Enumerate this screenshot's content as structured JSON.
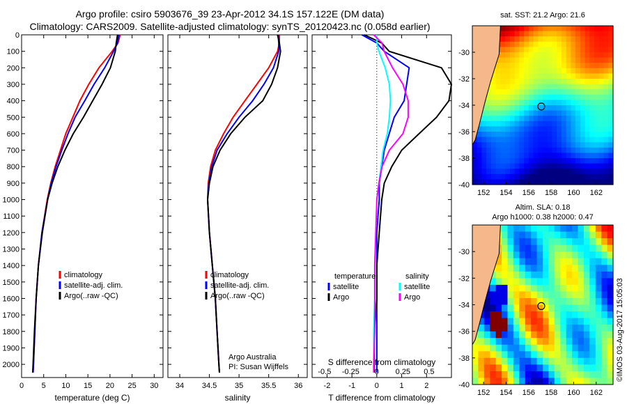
{
  "header": {
    "title_line1": "Argo profile: csiro 5903676_39 23-Apr-2012 34.1S 157.122E (DM data)",
    "title_line2": "Climatology: CARS2009. Satellite-adjusted climatology: synTS_20120423.nc (0.058d earlier)"
  },
  "credit": "©IMOS 03-Aug-2017 15:05:03",
  "colors": {
    "climatology": "#ff0000",
    "satellite": "#0000ff",
    "argo": "#000000",
    "s_satellite": "#00ffff",
    "s_argo": "#ff00ff",
    "land": "#f5b88a"
  },
  "chart_data": [
    {
      "type": "line",
      "xlabel": "temperature (deg C)",
      "ylabel": "",
      "xlim": [
        0,
        32
      ],
      "ylim": [
        2080,
        0
      ],
      "xticks": [
        0,
        5,
        10,
        15,
        20,
        25,
        30
      ],
      "yticks": [
        0,
        100,
        200,
        300,
        400,
        500,
        600,
        700,
        800,
        900,
        1000,
        1100,
        1200,
        1300,
        1400,
        1500,
        1600,
        1700,
        1800,
        1900,
        2000
      ],
      "legend": [
        "climatology",
        "satellite-adj. clim.",
        "Argo(..raw -QC)"
      ],
      "legend_placement": "lower-center",
      "y": [
        0,
        50,
        100,
        200,
        300,
        400,
        500,
        600,
        700,
        800,
        900,
        1000,
        1200,
        1400,
        1600,
        1800,
        2000,
        2050
      ],
      "series": [
        {
          "name": "climatology",
          "values": [
            22.3,
            21.8,
            20.5,
            17.5,
            15.2,
            13.2,
            11.6,
            10.0,
            8.8,
            7.6,
            6.6,
            5.8,
            4.6,
            3.8,
            3.3,
            3.0,
            2.7,
            2.6
          ]
        },
        {
          "name": "satellite-adj. clim.",
          "values": [
            22.0,
            21.7,
            20.8,
            18.8,
            16.4,
            14.3,
            12.1,
            10.5,
            9.1,
            7.8,
            6.7,
            5.9,
            4.6,
            3.8,
            3.3,
            3.0,
            2.7,
            2.6
          ]
        },
        {
          "name": "Argo(..raw -QC)",
          "values": [
            21.7,
            21.4,
            21.2,
            20.1,
            18.2,
            16.1,
            14.0,
            11.7,
            9.8,
            8.2,
            6.9,
            5.9,
            4.7,
            3.8,
            3.3,
            2.9,
            2.6,
            2.5
          ]
        }
      ]
    },
    {
      "type": "line",
      "xlabel": "salinity",
      "xlim": [
        33.8,
        36.15
      ],
      "ylim": [
        2080,
        0
      ],
      "xticks": [
        34,
        34.5,
        35,
        35.5,
        36
      ],
      "legend": [
        "climatology",
        "satellite-adj. clim.",
        "Argo(..raw -QC)"
      ],
      "legend_placement": "lower-center",
      "annotation": [
        "Argo Australia",
        "PI: Susan Wijffels"
      ],
      "y": [
        0,
        50,
        100,
        200,
        300,
        400,
        500,
        600,
        700,
        800,
        900,
        1000,
        1200,
        1400,
        1600,
        1800,
        2000,
        2050
      ],
      "series": [
        {
          "name": "climatology",
          "values": [
            35.68,
            35.68,
            35.65,
            35.5,
            35.3,
            35.1,
            34.9,
            34.74,
            34.6,
            34.52,
            34.48,
            34.47,
            34.5,
            34.55,
            34.6,
            34.63,
            34.66,
            34.67
          ]
        },
        {
          "name": "satellite-adj. clim.",
          "values": [
            35.66,
            35.67,
            35.67,
            35.58,
            35.42,
            35.23,
            35.0,
            34.8,
            34.63,
            34.54,
            34.49,
            34.47,
            34.5,
            34.55,
            34.6,
            34.63,
            34.66,
            34.67
          ]
        },
        {
          "name": "Argo(..raw -QC)",
          "values": [
            35.65,
            35.68,
            35.7,
            35.65,
            35.55,
            35.4,
            35.1,
            34.86,
            34.68,
            34.56,
            34.5,
            34.47,
            34.5,
            34.55,
            34.6,
            34.63,
            34.66,
            34.67
          ]
        }
      ]
    },
    {
      "type": "line",
      "xlabel": "T difference from climatology",
      "xlabel_top": "S difference from climatology",
      "xlim": [
        -2.6,
        3.0
      ],
      "ylim": [
        2080,
        0
      ],
      "xticks": [
        -2,
        -1,
        0,
        1,
        2
      ],
      "xticks_top": [
        "-0.5",
        "-0.25",
        "0",
        "0.25",
        "0.5"
      ],
      "legend_left": [
        "temperature",
        "satellite",
        "Argo"
      ],
      "legend_right": [
        "salinity",
        "satellite",
        "Argo"
      ],
      "legend_placement": "lower-center",
      "y": [
        0,
        50,
        100,
        200,
        300,
        400,
        500,
        600,
        700,
        800,
        900,
        1000,
        1200,
        1400,
        1600,
        1800,
        2000,
        2050
      ],
      "series": [
        {
          "name": "T satellite",
          "values": [
            -0.6,
            0,
            0.3,
            1.3,
            1.2,
            1.1,
            0.7,
            0.5,
            0.3,
            0.2,
            0.1,
            0.1,
            0,
            0,
            0,
            0,
            0,
            0
          ]
        },
        {
          "name": "T Argo",
          "values": [
            -0.5,
            0.2,
            0.5,
            2.6,
            3.0,
            2.9,
            2.4,
            1.7,
            1.0,
            0.6,
            0.3,
            0.2,
            0.1,
            0,
            0,
            -0.1,
            -0.1,
            -0.1
          ]
        },
        {
          "name": "S satellite",
          "values": [
            0,
            0,
            0.02,
            0.08,
            0.12,
            0.13,
            0.12,
            0.1,
            0.06,
            0.04,
            0.02,
            0,
            -0.01,
            -0.02,
            -0.02,
            -0.03,
            -0.03,
            -0.03
          ]
        },
        {
          "name": "S Argo",
          "values": [
            -0.03,
            0.05,
            0.07,
            0.15,
            0.25,
            0.3,
            0.3,
            0.25,
            0.12,
            0.05,
            0.02,
            0,
            -0.01,
            -0.02,
            -0.02,
            -0.02,
            -0.03,
            -0.03
          ]
        }
      ]
    }
  ],
  "maps": [
    {
      "title": "sat. SST: 21.2 Argo: 21.6",
      "xticks": [
        "152",
        "154",
        "156",
        "158",
        "160",
        "162"
      ],
      "yticks": [
        "-30",
        "-32",
        "-34",
        "-36",
        "-38",
        "-40"
      ],
      "xlim": [
        151,
        163.5
      ],
      "ylim": [
        -40,
        -28
      ]
    },
    {
      "title_line1": "Altim. SLA: 0.18",
      "title_line2": "Argo h1000: 0.38 h2000: 0.47",
      "xticks": [
        "152",
        "154",
        "156",
        "158",
        "160",
        "162"
      ],
      "yticks": [
        "-30",
        "-32",
        "-34",
        "-36",
        "-38",
        "-40"
      ],
      "xlim": [
        151,
        163.5
      ],
      "ylim": [
        -40,
        -28
      ]
    }
  ],
  "float_position": {
    "lon": 157.122,
    "lat": -34.1
  }
}
